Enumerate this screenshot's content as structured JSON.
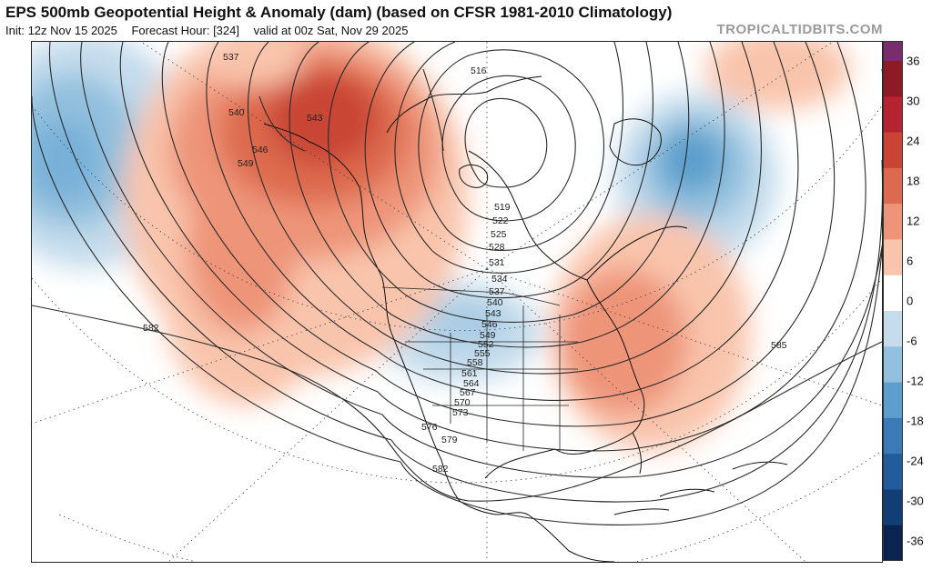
{
  "header": {
    "title": "EPS 500mb Geopotential Height & Anomaly (dam) (based on CFSR 1981-2010 Climatology)",
    "init": "Init: 12z Nov 15 2025",
    "forecast_hour": "Forecast Hour: [324]",
    "valid": "valid at 00z Sat, Nov 29 2025",
    "brand": "TROPICALTIDBITS.COM"
  },
  "colorbar": {
    "labels": [
      "36",
      "30",
      "24",
      "18",
      "12",
      "6",
      "0",
      "-6",
      "-12",
      "-18",
      "-24",
      "-30",
      "-36"
    ],
    "colors": [
      "#7a2d6e",
      "#8e1a26",
      "#b52430",
      "#c94434",
      "#dd6a4e",
      "#ee9479",
      "#f9c4ac",
      "#ffffff",
      "#c4dcec",
      "#92c0de",
      "#5c9fcc",
      "#3a7bb7",
      "#235c9c",
      "#123e78",
      "#0b2350"
    ]
  },
  "contours": {
    "labels": [
      "537",
      "540",
      "543",
      "546",
      "549",
      "516",
      "519",
      "522",
      "525",
      "528",
      "531",
      "534",
      "537",
      "540",
      "543",
      "546",
      "549",
      "552",
      "555",
      "558",
      "561",
      "564",
      "567",
      "570",
      "573",
      "576",
      "579",
      "582",
      "582",
      "585"
    ]
  }
}
